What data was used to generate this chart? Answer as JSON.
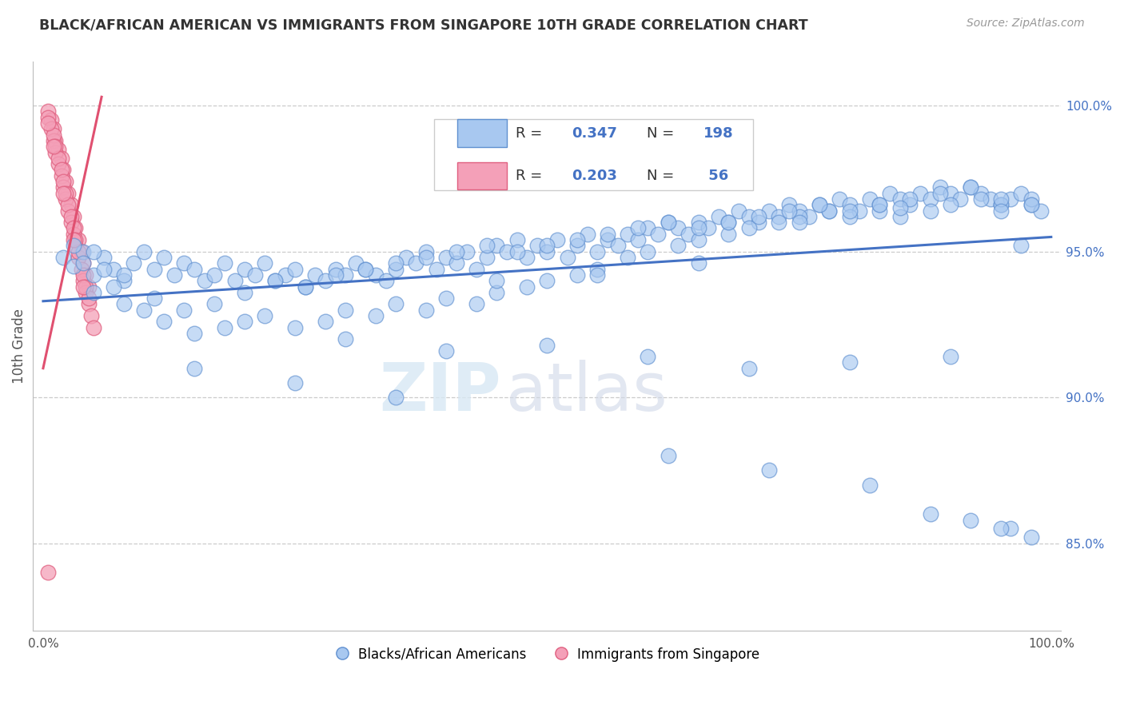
{
  "title": "BLACK/AFRICAN AMERICAN VS IMMIGRANTS FROM SINGAPORE 10TH GRADE CORRELATION CHART",
  "source_text": "Source: ZipAtlas.com",
  "ylabel": "10th Grade",
  "y_tick_labels": [
    "85.0%",
    "90.0%",
    "95.0%",
    "100.0%"
  ],
  "y_tick_values": [
    0.85,
    0.9,
    0.95,
    1.0
  ],
  "ylim": [
    0.82,
    1.015
  ],
  "xlim": [
    -0.01,
    1.01
  ],
  "blue_R": 0.347,
  "blue_N": 198,
  "pink_R": 0.203,
  "pink_N": 56,
  "blue_color": "#A8C8F0",
  "pink_color": "#F4A0B8",
  "blue_edge_color": "#6090D0",
  "pink_edge_color": "#E06080",
  "blue_line_color": "#4472C4",
  "pink_line_color": "#E05070",
  "legend_label_blue": "Blacks/African Americans",
  "legend_label_pink": "Immigrants from Singapore",
  "blue_x": [
    0.02,
    0.03,
    0.04,
    0.05,
    0.06,
    0.07,
    0.08,
    0.03,
    0.04,
    0.05,
    0.06,
    0.07,
    0.08,
    0.09,
    0.1,
    0.11,
    0.12,
    0.13,
    0.14,
    0.15,
    0.16,
    0.17,
    0.18,
    0.19,
    0.2,
    0.21,
    0.22,
    0.23,
    0.24,
    0.25,
    0.26,
    0.27,
    0.28,
    0.29,
    0.3,
    0.31,
    0.32,
    0.33,
    0.34,
    0.35,
    0.36,
    0.37,
    0.38,
    0.39,
    0.4,
    0.41,
    0.42,
    0.43,
    0.44,
    0.45,
    0.46,
    0.47,
    0.48,
    0.49,
    0.5,
    0.51,
    0.52,
    0.53,
    0.54,
    0.55,
    0.56,
    0.57,
    0.58,
    0.59,
    0.6,
    0.61,
    0.62,
    0.63,
    0.64,
    0.65,
    0.66,
    0.67,
    0.68,
    0.69,
    0.7,
    0.71,
    0.72,
    0.73,
    0.74,
    0.75,
    0.76,
    0.77,
    0.78,
    0.79,
    0.8,
    0.81,
    0.82,
    0.83,
    0.84,
    0.85,
    0.86,
    0.87,
    0.88,
    0.89,
    0.9,
    0.91,
    0.92,
    0.93,
    0.94,
    0.95,
    0.96,
    0.97,
    0.98,
    0.99,
    0.1,
    0.12,
    0.15,
    0.18,
    0.2,
    0.22,
    0.25,
    0.28,
    0.3,
    0.33,
    0.35,
    0.38,
    0.4,
    0.43,
    0.45,
    0.48,
    0.5,
    0.53,
    0.55,
    0.58,
    0.6,
    0.63,
    0.65,
    0.68,
    0.7,
    0.73,
    0.75,
    0.78,
    0.8,
    0.83,
    0.85,
    0.88,
    0.9,
    0.93,
    0.95,
    0.98,
    0.05,
    0.08,
    0.11,
    0.14,
    0.17,
    0.2,
    0.23,
    0.26,
    0.29,
    0.32,
    0.35,
    0.38,
    0.41,
    0.44,
    0.47,
    0.5,
    0.53,
    0.56,
    0.59,
    0.62,
    0.65,
    0.68,
    0.71,
    0.74,
    0.77,
    0.8,
    0.83,
    0.86,
    0.89,
    0.92,
    0.95,
    0.98,
    0.45,
    0.55,
    0.65,
    0.75,
    0.85,
    0.95,
    0.88,
    0.92,
    0.96,
    0.98,
    0.62,
    0.15,
    0.25,
    0.35,
    0.72,
    0.82,
    0.3,
    0.4,
    0.5,
    0.6,
    0.7,
    0.8,
    0.9,
    0.95,
    0.97
  ],
  "blue_y": [
    0.948,
    0.945,
    0.95,
    0.942,
    0.948,
    0.944,
    0.94,
    0.952,
    0.946,
    0.95,
    0.944,
    0.938,
    0.942,
    0.946,
    0.95,
    0.944,
    0.948,
    0.942,
    0.946,
    0.944,
    0.94,
    0.942,
    0.946,
    0.94,
    0.944,
    0.942,
    0.946,
    0.94,
    0.942,
    0.944,
    0.938,
    0.942,
    0.94,
    0.944,
    0.942,
    0.946,
    0.944,
    0.942,
    0.94,
    0.944,
    0.948,
    0.946,
    0.95,
    0.944,
    0.948,
    0.946,
    0.95,
    0.944,
    0.948,
    0.952,
    0.95,
    0.954,
    0.948,
    0.952,
    0.95,
    0.954,
    0.948,
    0.952,
    0.956,
    0.95,
    0.954,
    0.952,
    0.956,
    0.954,
    0.958,
    0.956,
    0.96,
    0.958,
    0.956,
    0.96,
    0.958,
    0.962,
    0.96,
    0.964,
    0.962,
    0.96,
    0.964,
    0.962,
    0.966,
    0.964,
    0.962,
    0.966,
    0.964,
    0.968,
    0.966,
    0.964,
    0.968,
    0.966,
    0.97,
    0.968,
    0.966,
    0.97,
    0.968,
    0.972,
    0.97,
    0.968,
    0.972,
    0.97,
    0.968,
    0.966,
    0.968,
    0.97,
    0.966,
    0.964,
    0.93,
    0.926,
    0.922,
    0.924,
    0.926,
    0.928,
    0.924,
    0.926,
    0.93,
    0.928,
    0.932,
    0.93,
    0.934,
    0.932,
    0.936,
    0.938,
    0.94,
    0.942,
    0.944,
    0.948,
    0.95,
    0.952,
    0.954,
    0.956,
    0.958,
    0.96,
    0.962,
    0.964,
    0.962,
    0.964,
    0.962,
    0.964,
    0.966,
    0.968,
    0.966,
    0.968,
    0.936,
    0.932,
    0.934,
    0.93,
    0.932,
    0.936,
    0.94,
    0.938,
    0.942,
    0.944,
    0.946,
    0.948,
    0.95,
    0.952,
    0.95,
    0.952,
    0.954,
    0.956,
    0.958,
    0.96,
    0.958,
    0.96,
    0.962,
    0.964,
    0.966,
    0.964,
    0.966,
    0.968,
    0.97,
    0.972,
    0.968,
    0.966,
    0.94,
    0.942,
    0.946,
    0.96,
    0.965,
    0.964,
    0.86,
    0.858,
    0.855,
    0.852,
    0.88,
    0.91,
    0.905,
    0.9,
    0.875,
    0.87,
    0.92,
    0.916,
    0.918,
    0.914,
    0.91,
    0.912,
    0.914,
    0.855,
    0.952
  ],
  "pink_x": [
    0.005,
    0.008,
    0.01,
    0.012,
    0.015,
    0.018,
    0.02,
    0.022,
    0.025,
    0.028,
    0.03,
    0.032,
    0.035,
    0.038,
    0.04,
    0.042,
    0.045,
    0.005,
    0.008,
    0.01,
    0.012,
    0.015,
    0.018,
    0.02,
    0.022,
    0.025,
    0.028,
    0.03,
    0.032,
    0.035,
    0.038,
    0.04,
    0.042,
    0.045,
    0.048,
    0.05,
    0.01,
    0.012,
    0.015,
    0.018,
    0.02,
    0.022,
    0.025,
    0.028,
    0.03,
    0.032,
    0.035,
    0.04,
    0.042,
    0.045,
    0.005,
    0.01,
    0.02,
    0.03,
    0.04,
    0.005
  ],
  "pink_y": [
    0.998,
    0.995,
    0.992,
    0.988,
    0.985,
    0.982,
    0.978,
    0.974,
    0.97,
    0.966,
    0.962,
    0.958,
    0.954,
    0.95,
    0.946,
    0.942,
    0.938,
    0.996,
    0.992,
    0.988,
    0.984,
    0.98,
    0.976,
    0.972,
    0.968,
    0.964,
    0.96,
    0.956,
    0.952,
    0.948,
    0.944,
    0.94,
    0.936,
    0.932,
    0.928,
    0.924,
    0.99,
    0.986,
    0.982,
    0.978,
    0.974,
    0.97,
    0.966,
    0.962,
    0.958,
    0.954,
    0.95,
    0.942,
    0.938,
    0.934,
    0.994,
    0.986,
    0.97,
    0.954,
    0.938,
    0.84
  ],
  "blue_trend_x": [
    0.0,
    1.0
  ],
  "blue_trend_y": [
    0.933,
    0.955
  ],
  "pink_trend_x": [
    0.0,
    0.058
  ],
  "pink_trend_y": [
    0.91,
    1.003
  ],
  "watermark_zip": "ZIP",
  "watermark_atlas": "atlas",
  "bg_color": "#FFFFFF",
  "grid_color": "#CCCCCC",
  "title_color": "#333333",
  "axis_label_color": "#555555",
  "right_tick_color": "#4472C4",
  "legend_border_color": "#CCCCCC"
}
